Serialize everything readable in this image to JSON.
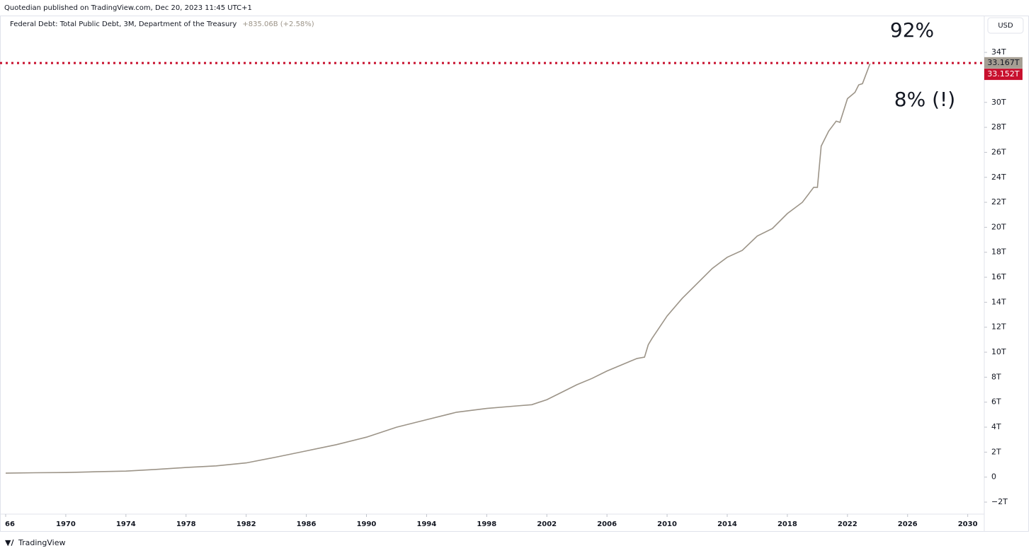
{
  "header": "Quotedian published on TradingView.com, Dec 20, 2023 11:45 UTC+1",
  "footer": "TradingView",
  "currency_button": "USD",
  "chart_data": {
    "type": "line",
    "title": "Federal Debt: Total Public Debt, 3M, Department of the Treasury",
    "subtitle": "+835.06B (+2.58%)",
    "annotations": [
      "92%",
      "8% (!)"
    ],
    "x": [
      1966,
      1968,
      1970,
      1972,
      1974,
      1976,
      1978,
      1980,
      1982,
      1984,
      1986,
      1988,
      1990,
      1992,
      1994,
      1996,
      1998,
      2000,
      2001,
      2002,
      2003,
      2004,
      2005,
      2006,
      2007,
      2008,
      2008.5,
      2008.75,
      2009,
      2010,
      2011,
      2012,
      2013,
      2014,
      2015,
      2016,
      2017,
      2018,
      2019,
      2019.75,
      2020,
      2020.25,
      2020.75,
      2021.25,
      2021.5,
      2022,
      2022.5,
      2022.75,
      2023,
      2023.5
    ],
    "series": [
      {
        "name": "Federal Debt: Total Public Debt",
        "color": "#9c9488",
        "values": [
          0.32,
          0.35,
          0.37,
          0.43,
          0.48,
          0.62,
          0.77,
          0.9,
          1.14,
          1.6,
          2.1,
          2.6,
          3.2,
          4.0,
          4.6,
          5.2,
          5.5,
          5.7,
          5.8,
          6.2,
          6.8,
          7.4,
          7.9,
          8.5,
          9.0,
          9.5,
          9.6,
          10.6,
          11.1,
          12.9,
          14.3,
          15.5,
          16.7,
          17.6,
          18.15,
          19.3,
          19.9,
          21.1,
          22.0,
          23.2,
          23.2,
          26.5,
          27.7,
          28.5,
          28.4,
          30.3,
          30.8,
          31.4,
          31.5,
          33.1
        ]
      }
    ],
    "last_value": {
      "value": 33.167,
      "label": "33.167T"
    },
    "hline": {
      "value": 33.152,
      "label": "33.152T",
      "color": "#c8102e"
    },
    "xlim": [
      1966,
      2031.1
    ],
    "xticks": [
      {
        "value": 1966,
        "label": "66"
      },
      1970,
      1974,
      1978,
      1982,
      1986,
      1990,
      1994,
      1998,
      2002,
      2006,
      2010,
      2014,
      2018,
      2022,
      2026,
      2030
    ],
    "ylim": [
      -2.96,
      36.95
    ],
    "yticks": [
      {
        "value": -2,
        "label": "−2T"
      },
      0,
      {
        "value": 2,
        "label": "2T"
      },
      {
        "value": 4,
        "label": "4T"
      },
      {
        "value": 6,
        "label": "6T"
      },
      {
        "value": 8,
        "label": "8T"
      },
      {
        "value": 10,
        "label": "10T"
      },
      {
        "value": 12,
        "label": "12T"
      },
      {
        "value": 14,
        "label": "14T"
      },
      {
        "value": 16,
        "label": "16T"
      },
      {
        "value": 18,
        "label": "18T"
      },
      {
        "value": 20,
        "label": "20T"
      },
      {
        "value": 22,
        "label": "22T"
      },
      {
        "value": 24,
        "label": "24T"
      },
      {
        "value": 26,
        "label": "26T"
      },
      {
        "value": 28,
        "label": "28T"
      },
      {
        "value": 30,
        "label": "30T"
      },
      {
        "value": 34,
        "label": "34T"
      }
    ],
    "grid": false
  }
}
